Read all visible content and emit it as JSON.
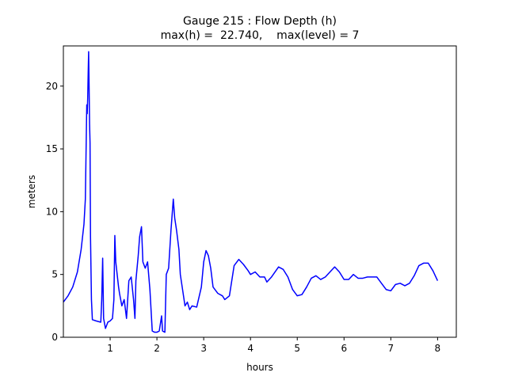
{
  "chart_data": {
    "type": "line",
    "title": "Gauge 215 : Flow Depth (h)",
    "subtitle": "max(h) =  22.740,    max(level) = 7",
    "x_label": "hours",
    "y_label": "meters",
    "xlim": [
      0,
      8.4
    ],
    "ylim": [
      0,
      23.2
    ],
    "xticks": [
      1,
      2,
      3,
      4,
      5,
      6,
      7,
      8
    ],
    "yticks": [
      0,
      5,
      10,
      15,
      20
    ],
    "grid": false,
    "series": [
      {
        "name": "h",
        "color": "#0000ff",
        "x": [
          0.0,
          0.1,
          0.2,
          0.3,
          0.38,
          0.44,
          0.47,
          0.49,
          0.5,
          0.51,
          0.52,
          0.53,
          0.54,
          0.55,
          0.56,
          0.57,
          0.58,
          0.6,
          0.62,
          0.7,
          0.8,
          0.82,
          0.84,
          0.86,
          0.9,
          0.95,
          1.0,
          1.05,
          1.08,
          1.1,
          1.12,
          1.15,
          1.18,
          1.2,
          1.25,
          1.3,
          1.35,
          1.4,
          1.45,
          1.5,
          1.53,
          1.55,
          1.6,
          1.63,
          1.67,
          1.7,
          1.75,
          1.8,
          1.85,
          1.9,
          1.95,
          2.0,
          2.05,
          2.1,
          2.12,
          2.17,
          2.2,
          2.25,
          2.3,
          2.35,
          2.38,
          2.42,
          2.47,
          2.5,
          2.6,
          2.65,
          2.7,
          2.75,
          2.85,
          2.95,
          3.0,
          3.05,
          3.1,
          3.15,
          3.2,
          3.3,
          3.4,
          3.45,
          3.55,
          3.65,
          3.75,
          3.85,
          3.95,
          4.0,
          4.1,
          4.2,
          4.3,
          4.35,
          4.45,
          4.6,
          4.7,
          4.8,
          4.9,
          5.0,
          5.1,
          5.2,
          5.3,
          5.4,
          5.5,
          5.6,
          5.7,
          5.8,
          5.9,
          6.0,
          6.1,
          6.2,
          6.3,
          6.4,
          6.5,
          6.6,
          6.7,
          6.8,
          6.9,
          7.0,
          7.1,
          7.2,
          7.3,
          7.4,
          7.5,
          7.6,
          7.7,
          7.8,
          7.9,
          8.0
        ],
        "values": [
          2.8,
          3.3,
          4.0,
          5.2,
          7.0,
          9.0,
          11.0,
          16.0,
          18.5,
          17.8,
          19.0,
          21.0,
          22.74,
          20.0,
          17.0,
          15.5,
          8.0,
          3.0,
          1.4,
          1.3,
          1.2,
          3.0,
          6.3,
          1.5,
          0.7,
          1.2,
          1.3,
          1.5,
          3.0,
          8.1,
          6.0,
          5.0,
          4.0,
          3.5,
          2.5,
          3.0,
          1.5,
          4.5,
          4.8,
          3.0,
          1.5,
          4.5,
          6.5,
          8.0,
          8.8,
          6.0,
          5.5,
          6.0,
          3.8,
          0.5,
          0.4,
          0.4,
          0.5,
          1.7,
          0.5,
          0.4,
          5.0,
          5.5,
          8.5,
          11.0,
          9.5,
          8.5,
          7.0,
          5.0,
          2.5,
          2.8,
          2.2,
          2.5,
          2.4,
          4.0,
          6.0,
          6.9,
          6.5,
          5.5,
          4.0,
          3.5,
          3.3,
          3.0,
          3.3,
          5.7,
          6.2,
          5.8,
          5.3,
          5.0,
          5.2,
          4.8,
          4.8,
          4.4,
          4.8,
          5.6,
          5.4,
          4.8,
          3.8,
          3.3,
          3.4,
          4.0,
          4.7,
          4.9,
          4.6,
          4.8,
          5.2,
          5.6,
          5.2,
          4.6,
          4.6,
          5.0,
          4.7,
          4.7,
          4.8,
          4.8,
          4.8,
          4.3,
          3.8,
          3.7,
          4.2,
          4.3,
          4.1,
          4.3,
          4.9,
          5.7,
          5.9,
          5.9,
          5.3,
          4.5
        ]
      }
    ]
  }
}
